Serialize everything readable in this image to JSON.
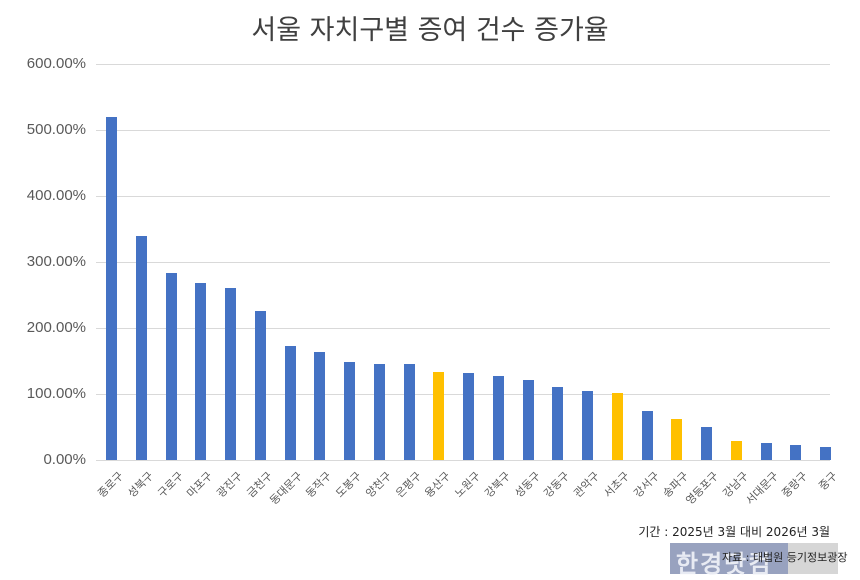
{
  "chart_data": {
    "type": "bar",
    "title": "서울 자치구별 증여 건수 증가율",
    "xlabel": "",
    "ylabel": "",
    "ylim": [
      0,
      600
    ],
    "yticks": [
      "0.00%",
      "100.00%",
      "200.00%",
      "300.00%",
      "400.00%",
      "500.00%",
      "600.00%"
    ],
    "grid": true,
    "legend": null,
    "categories": [
      "종로구",
      "성북구",
      "구로구",
      "마포구",
      "광진구",
      "금천구",
      "동대문구",
      "동작구",
      "도봉구",
      "양천구",
      "은평구",
      "용산구",
      "노원구",
      "강북구",
      "성동구",
      "강동구",
      "관악구",
      "서초구",
      "강서구",
      "송파구",
      "영등포구",
      "강남구",
      "서대문구",
      "중랑구",
      "중구"
    ],
    "values": [
      520,
      340,
      283,
      268,
      261,
      226,
      173,
      164,
      149,
      146,
      146,
      134,
      132,
      127,
      121,
      111,
      105,
      102,
      74,
      62,
      50,
      29,
      26,
      23,
      20
    ],
    "highlighted": [
      "용산구",
      "서초구",
      "송파구",
      "강남구"
    ],
    "colors": {
      "default": "#4472c4",
      "highlight": "#ffc000"
    },
    "annotations": [
      "기간 : 2025년 3월 대비 2026년 3월",
      "자료 : 대법원 등기정보광장"
    ]
  },
  "header": {
    "title": "서울 자치구별 증여 건수 증가율"
  },
  "footer": {
    "period": "기간 : 2025년 3월 대비 2026년 3월",
    "source": "자료 : 대법원 등기정보광장",
    "watermark": "한경닷컴"
  }
}
